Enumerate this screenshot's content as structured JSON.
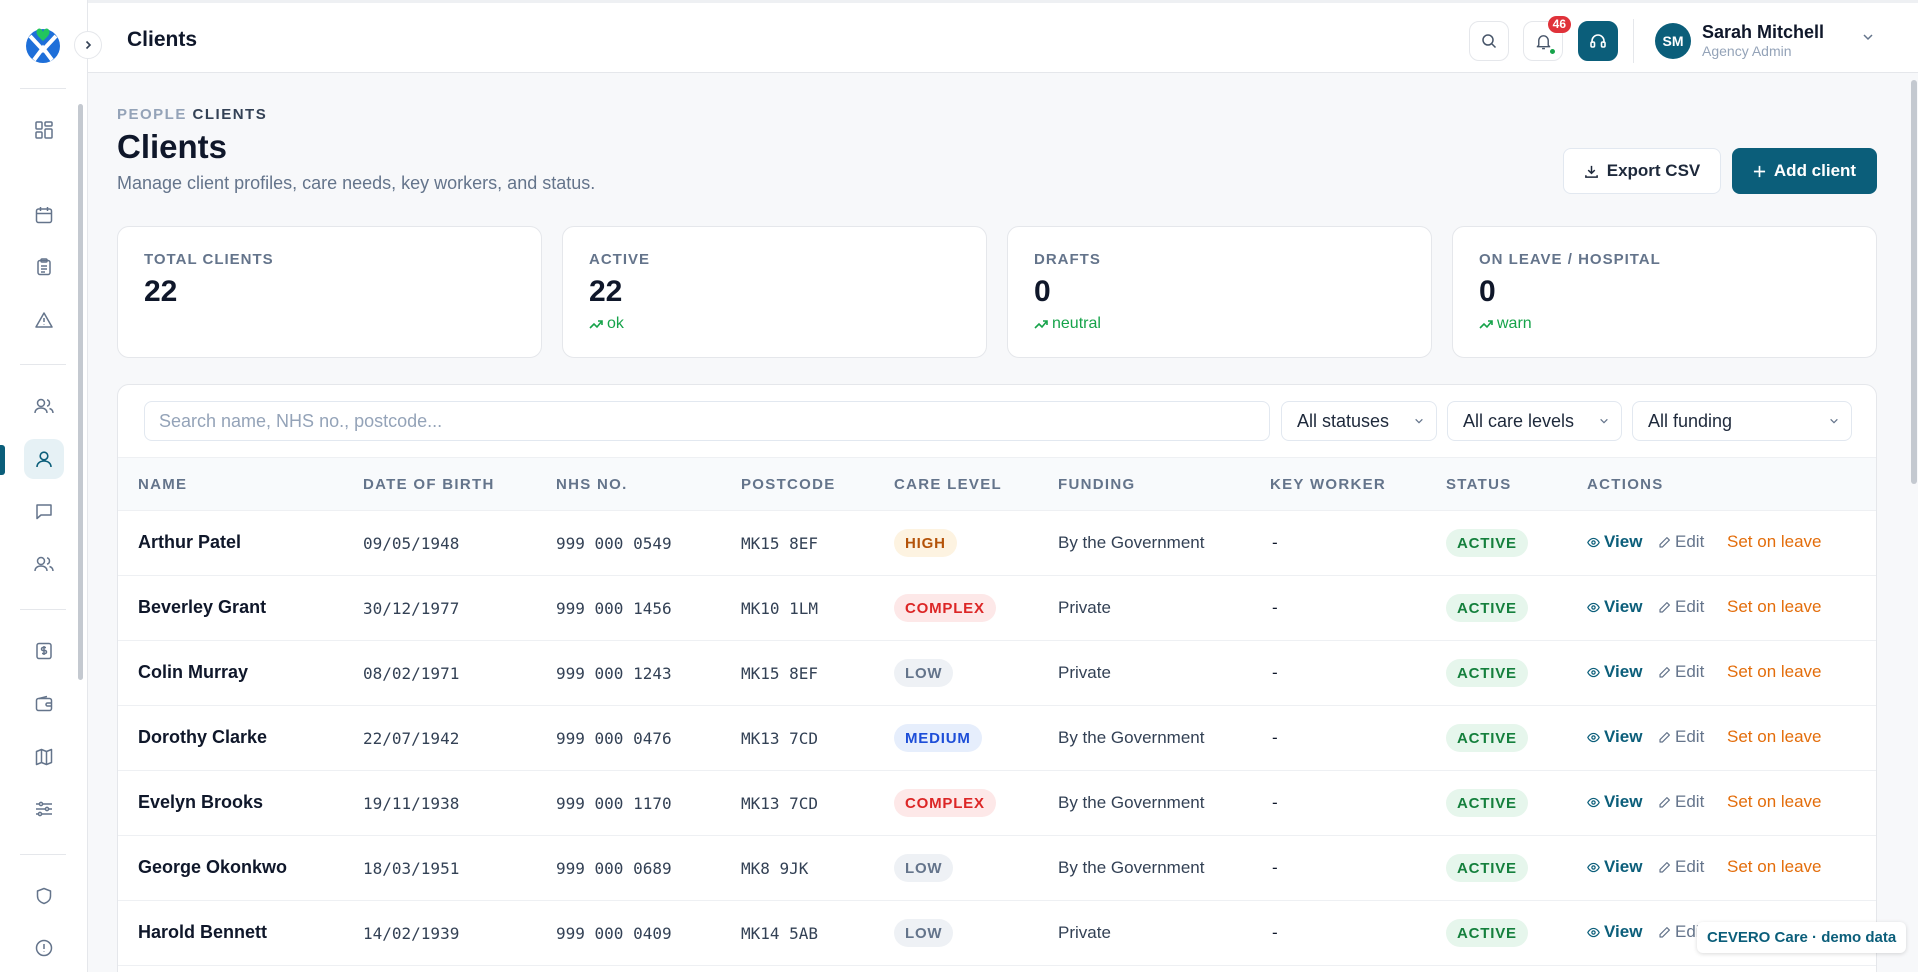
{
  "header": {
    "title": "Clients",
    "notifications_count": "46",
    "user": {
      "initials": "SM",
      "name": "Sarah Mitchell",
      "role": "Agency Admin"
    }
  },
  "breadcrumb": {
    "parent": "PEOPLE",
    "current": "CLIENTS"
  },
  "page": {
    "title": "Clients",
    "subtitle": "Manage client profiles, care needs, key workers, and status.",
    "export_label": "Export CSV",
    "add_label": "Add client"
  },
  "stats": [
    {
      "label": "TOTAL CLIENTS",
      "value": "22",
      "trend": ""
    },
    {
      "label": "ACTIVE",
      "value": "22",
      "trend": "ok"
    },
    {
      "label": "DRAFTS",
      "value": "0",
      "trend": "neutral"
    },
    {
      "label": "ON LEAVE / HOSPITAL",
      "value": "0",
      "trend": "warn"
    }
  ],
  "filters": {
    "search_placeholder": "Search name, NHS no., postcode...",
    "status": "All statuses",
    "care_level": "All care levels",
    "funding": "All funding"
  },
  "table": {
    "columns": [
      "NAME",
      "DATE OF BIRTH",
      "NHS NO.",
      "POSTCODE",
      "CARE LEVEL",
      "FUNDING",
      "KEY WORKER",
      "STATUS",
      "ACTIONS"
    ],
    "action_labels": {
      "view": "View",
      "edit": "Edit",
      "leave": "Set on leave"
    },
    "rows": [
      {
        "name": "Arthur Patel",
        "dob": "09/05/1948",
        "nhs": "999 000 0549",
        "postcode": "MK15 8EF",
        "care_level": "HIGH",
        "funding": "By the Government",
        "key_worker": "-",
        "status": "ACTIVE"
      },
      {
        "name": "Beverley Grant",
        "dob": "30/12/1977",
        "nhs": "999 000 1456",
        "postcode": "MK10 1LM",
        "care_level": "COMPLEX",
        "funding": "Private",
        "key_worker": "-",
        "status": "ACTIVE"
      },
      {
        "name": "Colin Murray",
        "dob": "08/02/1971",
        "nhs": "999 000 1243",
        "postcode": "MK15 8EF",
        "care_level": "LOW",
        "funding": "Private",
        "key_worker": "-",
        "status": "ACTIVE"
      },
      {
        "name": "Dorothy Clarke",
        "dob": "22/07/1942",
        "nhs": "999 000 0476",
        "postcode": "MK13 7CD",
        "care_level": "MEDIUM",
        "funding": "By the Government",
        "key_worker": "-",
        "status": "ACTIVE"
      },
      {
        "name": "Evelyn Brooks",
        "dob": "19/11/1938",
        "nhs": "999 000 1170",
        "postcode": "MK13 7CD",
        "care_level": "COMPLEX",
        "funding": "By the Government",
        "key_worker": "-",
        "status": "ACTIVE"
      },
      {
        "name": "George Okonkwo",
        "dob": "18/03/1951",
        "nhs": "999 000 0689",
        "postcode": "MK8 9JK",
        "care_level": "LOW",
        "funding": "By the Government",
        "key_worker": "-",
        "status": "ACTIVE"
      },
      {
        "name": "Harold Bennett",
        "dob": "14/02/1939",
        "nhs": "999 000 0409",
        "postcode": "MK14 5AB",
        "care_level": "LOW",
        "funding": "Private",
        "key_worker": "-",
        "status": "ACTIVE"
      }
    ]
  },
  "demo_badge": "CEVERO Care · demo data",
  "colors": {
    "primary": "#0b5e7a",
    "success": "#16a34a",
    "warning": "#e36d0b",
    "danger": "#dc2626"
  },
  "sidebar_icons": [
    "dashboard-icon",
    "calendar-icon",
    "clipboard-icon",
    "alert-icon",
    "team-icon",
    "client-icon",
    "messages-icon",
    "staff-icon",
    "invoice-icon",
    "wallet-icon",
    "map-icon",
    "settings-sliders-icon",
    "shield-icon",
    "info-icon"
  ]
}
